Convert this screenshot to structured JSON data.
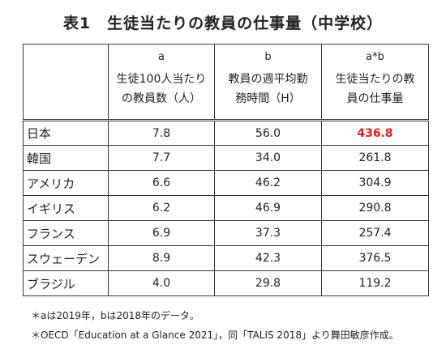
{
  "title": "表1　生徒当たりの教員の仕事量（中学校）",
  "columns": [
    {
      "key": "a",
      "header_line1": "生徒100人当たり",
      "header_line2": "の教員数（人）"
    },
    {
      "key": "b",
      "header_line1": "教員の週平均勤",
      "header_line2": "務時間（H）"
    },
    {
      "key": "a*b",
      "header_line1": "生徒当たりの教",
      "header_line2": "員の仕事量"
    }
  ],
  "rows": [
    {
      "country": "日本",
      "a": "7.8",
      "b": "56.0",
      "ab": "436.8"
    },
    {
      "country": "韓国",
      "a": "7.7",
      "b": "34.0",
      "ab": "261.8"
    },
    {
      "country": "アメリカ",
      "a": "6.6",
      "b": "46.2",
      "ab": "304.9"
    },
    {
      "country": "イギリス",
      "a": "6.2",
      "b": "46.9",
      "ab": "290.8"
    },
    {
      "country": "フランス",
      "a": "6.9",
      "b": "37.3",
      "ab": "257.4"
    },
    {
      "country": "スウェーデン",
      "a": "8.9",
      "b": "42.3",
      "ab": "376.5"
    },
    {
      "country": "ブラジル",
      "a": "4.0",
      "b": "29.8",
      "ab": "119.2"
    }
  ],
  "highlight_color": "#e02020",
  "notes": [
    "＊aは2019年，bは2018年のデータ。",
    "＊OECD「Education at a Glance 2021」，同「TALIS 2018」より舞田敏彦作成。"
  ]
}
